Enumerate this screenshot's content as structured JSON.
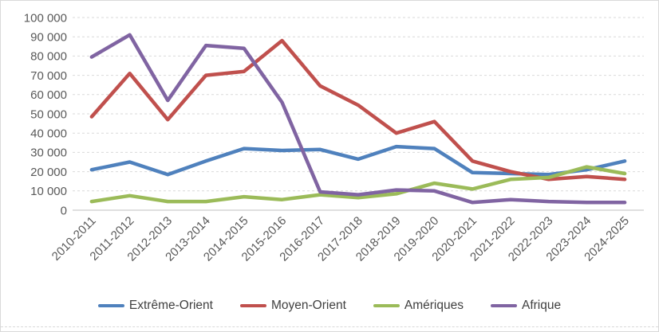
{
  "chart_data": {
    "type": "line",
    "title": "",
    "xlabel": "",
    "ylabel": "",
    "categories": [
      "2010-2011",
      "2011-2012",
      "2012-2013",
      "2013-2014",
      "2014-2015",
      "2015-2016",
      "2016-2017",
      "2017-2018",
      "2018-2019",
      "2019-2020",
      "2020-2021",
      "2021-2022",
      "2022-2023",
      "2023-2024",
      "2024-2025"
    ],
    "series": [
      {
        "name": "Extrême-Orient",
        "color": "#4F81BD",
        "values": [
          21000,
          25000,
          18500,
          25500,
          32000,
          31000,
          31500,
          26500,
          33000,
          32000,
          19500,
          19000,
          18500,
          21000,
          25500
        ]
      },
      {
        "name": "Moyen-Orient",
        "color": "#C0504D",
        "values": [
          48500,
          71000,
          47000,
          70000,
          72000,
          88000,
          64500,
          54500,
          40000,
          46000,
          25500,
          20000,
          16000,
          17500,
          16000
        ]
      },
      {
        "name": "Amériques",
        "color": "#9BBB59",
        "values": [
          4500,
          7500,
          4500,
          4500,
          7000,
          5500,
          8000,
          6500,
          8500,
          14000,
          11000,
          16000,
          17000,
          22500,
          19000
        ]
      },
      {
        "name": "Afrique",
        "color": "#8064A2",
        "values": [
          79500,
          91000,
          57000,
          85500,
          84000,
          56000,
          9500,
          8000,
          10500,
          10000,
          4000,
          5500,
          4500,
          4000,
          4000
        ]
      }
    ],
    "ylim": [
      0,
      100000
    ],
    "ytick_step": 10000,
    "ytick_labels": [
      "100 000",
      "90 000",
      "80 000",
      "70 000",
      "60 000",
      "50 000",
      "40 000",
      "30 000",
      "20 000",
      "10 000",
      "0"
    ],
    "grid": "horizontal-dashed",
    "gridline_color": "#d9d9d9",
    "axis_line_color": "#bfbfbf",
    "axis_text_color": "#595959",
    "legend_text_color": "#404040",
    "legend_position": "bottom"
  }
}
